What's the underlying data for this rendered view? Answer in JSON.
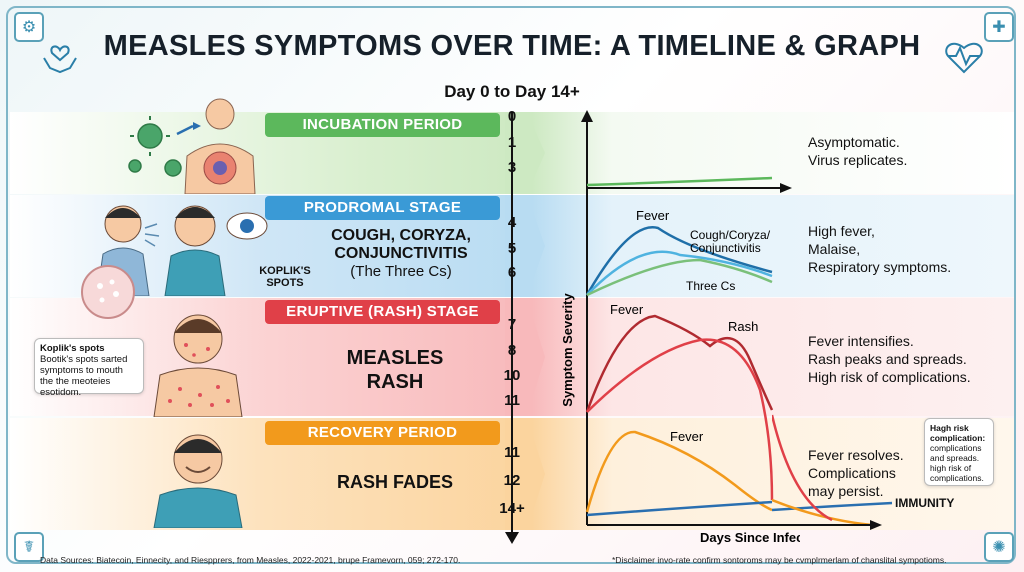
{
  "title": "MEASLES SYMPTOMS OVER TIME: A TIMELINE & GRAPH",
  "subtitle": "Day 0 to Day 14+",
  "stages": [
    {
      "label": "INCUBATION PERIOD",
      "color": "#5cb85c",
      "days": [
        "0",
        "1",
        "3"
      ],
      "description": [
        "Asymptomatic.",
        "Virus replicates."
      ]
    },
    {
      "label": "PRODROMAL STAGE",
      "color": "#3a9ad6",
      "days": [
        "4",
        "5",
        "6"
      ],
      "main_text": [
        "COUGH, CORYZA,",
        "CONJUNCTIVITIS"
      ],
      "sub_text": "(The Three Cs)",
      "koplik_label": [
        "KOPLIK'S",
        "SPOTS"
      ],
      "description": [
        "High fever,",
        "Malaise,",
        "Respiratory symptoms."
      ]
    },
    {
      "label": "ERUPTIVE (RASH) STAGE",
      "color": "#e04048",
      "days": [
        "7",
        "8",
        "10",
        "11"
      ],
      "main_text": [
        "MEASLES",
        "RASH"
      ],
      "description": [
        "Fever intensifies.",
        "Rash peaks and spreads.",
        "High risk of complications."
      ]
    },
    {
      "label": "RECOVERY PERIOD",
      "color": "#f29a1c",
      "days": [
        "11",
        "12",
        "14+"
      ],
      "main_text": [
        "RASH FADES"
      ],
      "description": [
        "Fever resolves.",
        "Complications",
        "may persist."
      ]
    }
  ],
  "graph": {
    "y_axis_label": "Symptom Severity",
    "x_axis_label": "Days Since Infection",
    "labels": {
      "fever_prodromal": "Fever",
      "three_cs_top": [
        "Cough/Coryza/",
        "Conjunctivitis"
      ],
      "three_cs": "Three Cs",
      "fever_rash": "Fever",
      "rash": "Rash",
      "fever_recovery": "Fever",
      "immunity": "IMMUNITY"
    }
  },
  "callouts": {
    "koplik": {
      "title": "Koplik's spots",
      "body": [
        "Bootik's spots sarted",
        "symptoms to mouth",
        "the the meoteies",
        "esotidom."
      ]
    },
    "risk": {
      "title": [
        "Hagh risk",
        "complication:"
      ],
      "body": [
        "complications",
        "and spreads.",
        "high risk of",
        "complications."
      ]
    }
  },
  "footer": {
    "sources": "Data Sources: Biatecoin, Einnecity, and Riespprers, from Measles, 2022-2021, brupe Framevorn, 059; 272-170.",
    "disclaimer": "*Disclaimer invo-rate confirm sontoroms rnay be cvmplrmerlam of chanslital sympotioms."
  },
  "colors": {
    "green": "#5cb85c",
    "blue": "#3a9ad6",
    "red": "#e04048",
    "orange": "#f29a1c",
    "dark_blue": "#1f6fa8",
    "teal": "#2a8ec0"
  }
}
